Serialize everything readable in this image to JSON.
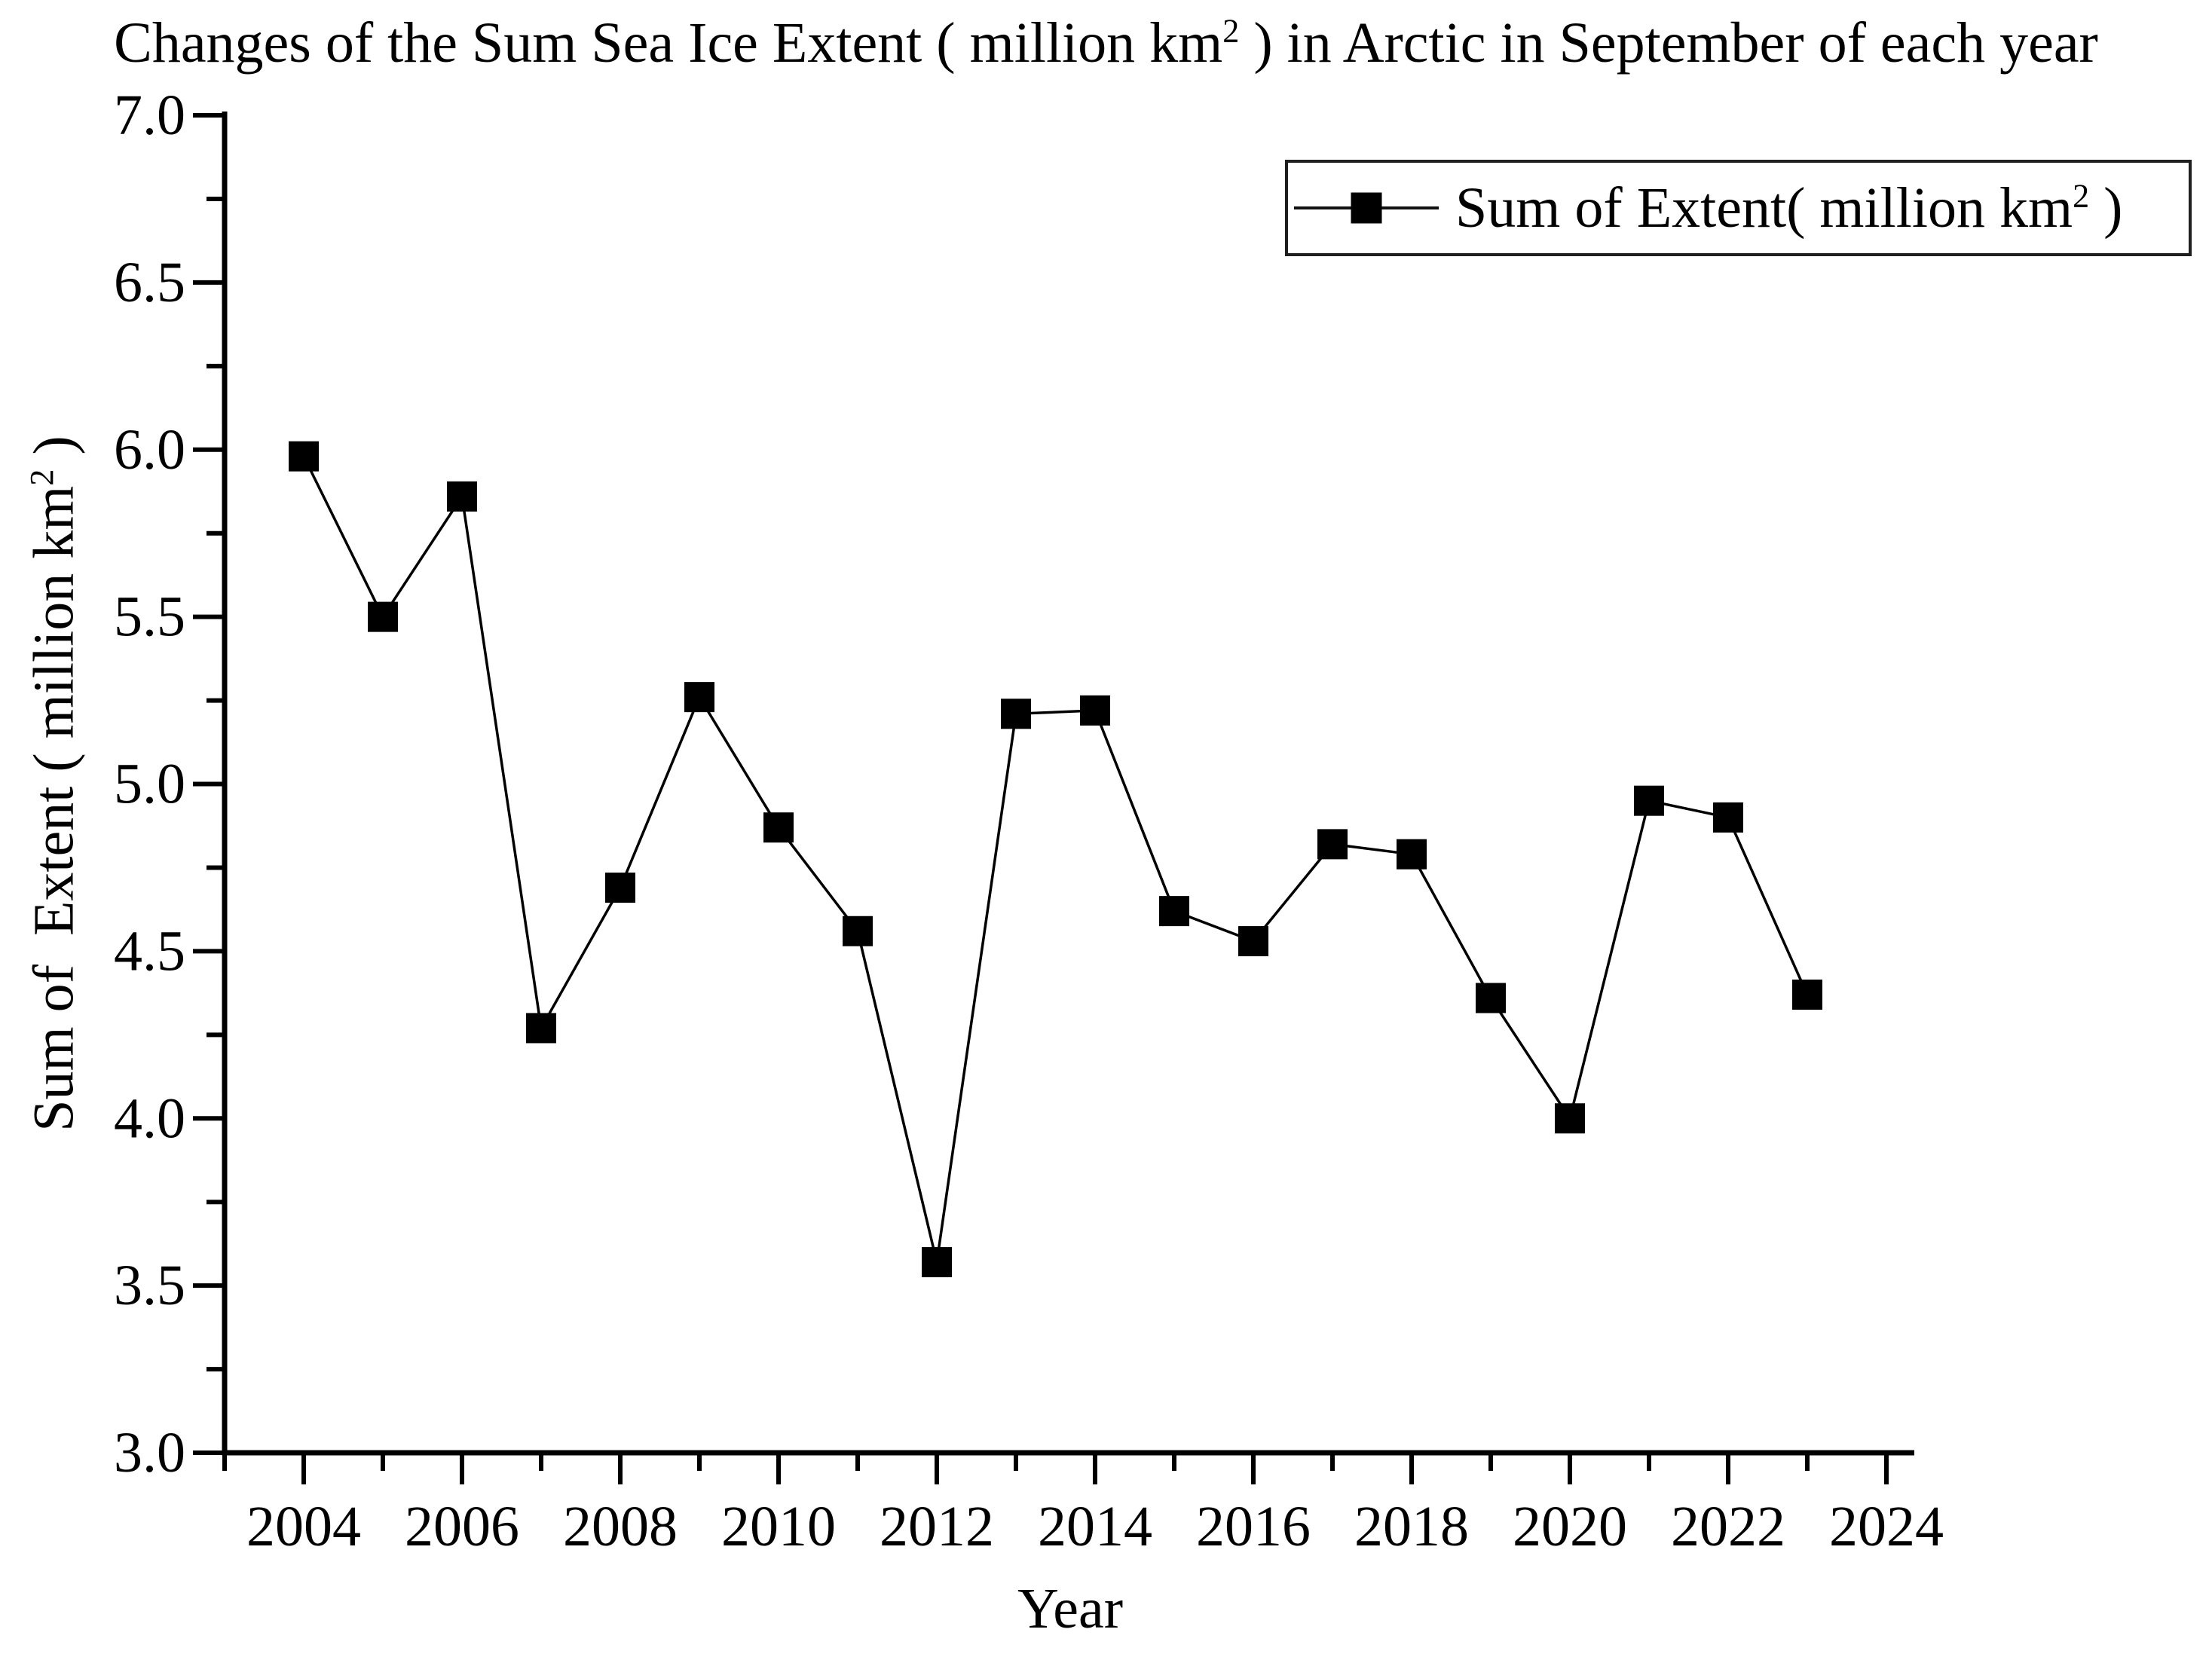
{
  "page": {
    "background": "#ffffff",
    "text_color": "#000000"
  },
  "chart_data": {
    "type": "line",
    "title": {
      "prefix": "Changes of the Sum Sea Ice Extent ( million km",
      "sup": "2",
      "suffix": " ) in Arctic in September of each year"
    },
    "xlabel": "Year",
    "ylabel": {
      "prefix": "Sum of  Extent ( million km",
      "sup": "2",
      "suffix": " )"
    },
    "legend_position": "top-right",
    "legend": [
      {
        "prefix": "Sum of Extent( million km",
        "sup": "2",
        "suffix": " )",
        "marker": "filled-square",
        "color": "#000000"
      }
    ],
    "grid": false,
    "marker_shape": "square",
    "line_color": "#000000",
    "marker_color": "#000000",
    "categories": [
      2004,
      2005,
      2006,
      2007,
      2008,
      2009,
      2010,
      2011,
      2012,
      2013,
      2014,
      2015,
      2016,
      2017,
      2018,
      2019,
      2020,
      2021,
      2022,
      2023
    ],
    "series": [
      {
        "name": "Sum of Extent( million km2 )",
        "values": [
          5.98,
          5.5,
          5.86,
          4.27,
          4.69,
          5.26,
          4.87,
          4.56,
          3.57,
          5.21,
          5.22,
          4.62,
          4.53,
          4.82,
          4.79,
          4.36,
          4.0,
          4.95,
          4.9,
          4.37
        ]
      }
    ],
    "x_axis": {
      "range": [
        2003,
        2024.35
      ],
      "major_ticks": [
        2004,
        2006,
        2008,
        2010,
        2012,
        2014,
        2016,
        2018,
        2020,
        2022,
        2024
      ],
      "major_tick_labels": [
        "2004",
        "2006",
        "2008",
        "2010",
        "2012",
        "2014",
        "2016",
        "2018",
        "2020",
        "2022",
        "2024"
      ],
      "minor_ticks": [
        2003,
        2005,
        2007,
        2009,
        2011,
        2013,
        2015,
        2017,
        2019,
        2021,
        2023
      ]
    },
    "y_axis": {
      "range": [
        3.0,
        7.0
      ],
      "major_ticks": [
        7.0,
        6.5,
        6.0,
        5.5,
        5.0,
        4.5,
        4.0,
        3.5,
        3.0
      ],
      "major_tick_labels": [
        "7.0",
        "6.5",
        "6.0",
        "5.5",
        "5.0",
        "4.5",
        "4.0",
        "3.5",
        "3.0"
      ],
      "minor_ticks": [
        6.75,
        6.25,
        5.75,
        5.25,
        4.75,
        4.25,
        3.75,
        3.25
      ]
    }
  }
}
